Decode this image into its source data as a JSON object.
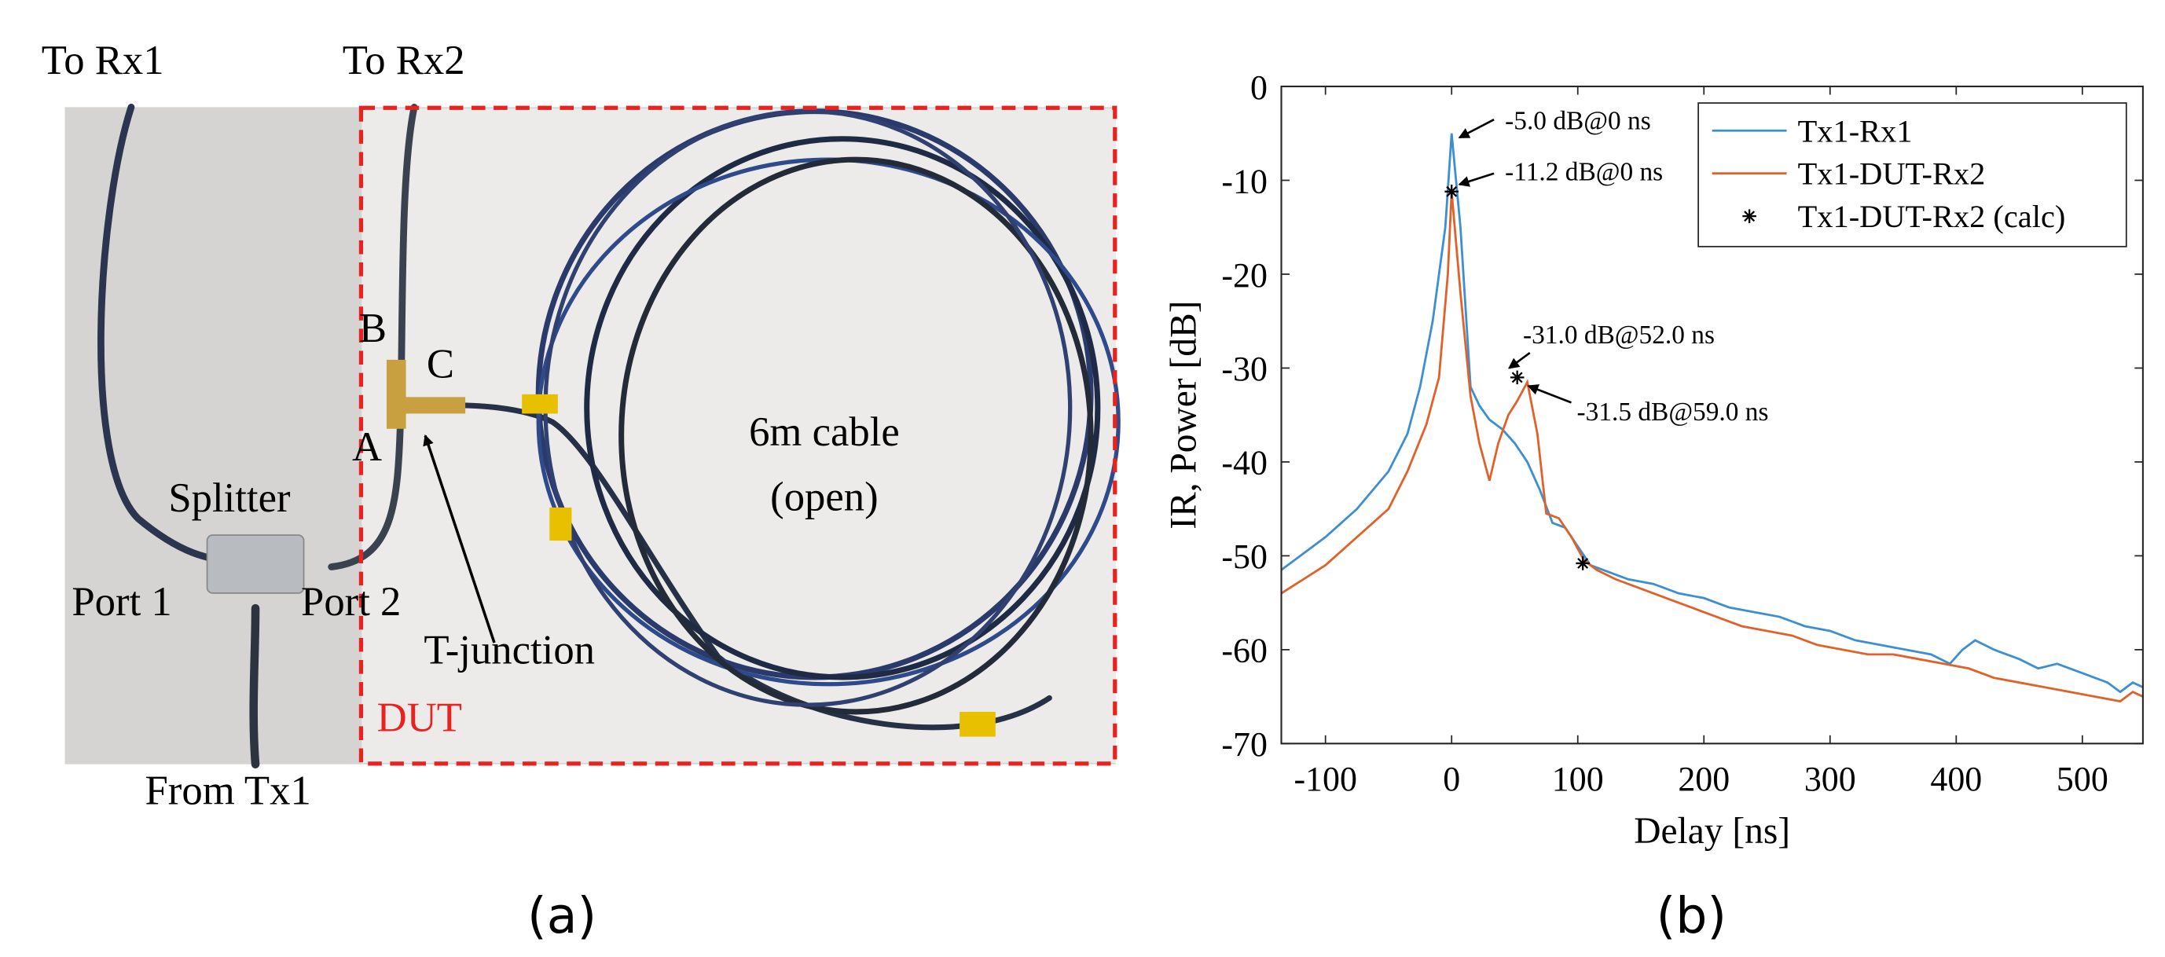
{
  "photo": {
    "labels": {
      "to_rx1": "To Rx1",
      "to_rx2": "To Rx2",
      "b": "B",
      "c": "C",
      "a": "A",
      "splitter": "Splitter",
      "port1": "Port 1",
      "port2": "Port 2",
      "t_junction": "T-junction",
      "cable_line1": "6m cable",
      "cable_line2": "(open)",
      "dut": "DUT",
      "from_tx1": "From Tx1"
    },
    "caption": "(a)"
  },
  "chart_data": {
    "type": "line",
    "caption": "(b)",
    "x_label": "Delay [ns]",
    "y_label": "IR, Power [dB]",
    "xlim": [
      -135,
      548
    ],
    "ylim": [
      -70,
      0
    ],
    "xticks": [
      -100,
      0,
      100,
      200,
      300,
      400,
      500
    ],
    "yticks": [
      0,
      -10,
      -20,
      -30,
      -40,
      -50,
      -60,
      -70
    ],
    "legend": "northeast",
    "series": [
      {
        "name": "Tx1-Rx1",
        "color": "#3d8fd0",
        "x": [
          -135,
          -100,
          -75,
          -50,
          -35,
          -25,
          -15,
          -5,
          0,
          7,
          15,
          22,
          30,
          40,
          50,
          60,
          70,
          80,
          90,
          100,
          110,
          120,
          140,
          160,
          180,
          200,
          220,
          240,
          260,
          280,
          300,
          320,
          340,
          360,
          380,
          395,
          405,
          415,
          430,
          450,
          465,
          480,
          500,
          520,
          530,
          540,
          548
        ],
        "values": [
          -51.5,
          -48,
          -45,
          -41,
          -37,
          -32,
          -25,
          -15,
          -5,
          -15,
          -32,
          -34,
          -35.5,
          -36.5,
          -38,
          -40,
          -43,
          -46.5,
          -47,
          -49,
          -51,
          -51.5,
          -52.5,
          -53,
          -54,
          -54.5,
          -55.5,
          -56,
          -56.5,
          -57.5,
          -58,
          -59,
          -59.5,
          -60,
          -60.5,
          -61.5,
          -60,
          -59,
          -60,
          -61,
          -62,
          -61.5,
          -62.5,
          -63.5,
          -64.5,
          -63.5,
          -64
        ]
      },
      {
        "name": "Tx1-DUT-Rx2",
        "color": "#e0622b",
        "x": [
          -135,
          -100,
          -75,
          -50,
          -35,
          -20,
          -10,
          -3,
          0,
          7,
          15,
          22,
          30,
          37,
          45,
          52,
          60,
          68,
          75,
          85,
          95,
          105,
          115,
          130,
          150,
          170,
          190,
          210,
          230,
          250,
          270,
          290,
          310,
          330,
          350,
          370,
          390,
          410,
          430,
          450,
          470,
          490,
          510,
          530,
          540,
          548
        ],
        "values": [
          -54,
          -51,
          -48,
          -45,
          -41,
          -36,
          -31,
          -20,
          -11.2,
          -22,
          -33,
          -38,
          -42,
          -38,
          -35,
          -33.5,
          -31.5,
          -37,
          -45.5,
          -46,
          -48,
          -50.5,
          -51.5,
          -52.5,
          -53.5,
          -54.5,
          -55.5,
          -56.5,
          -57.5,
          -58,
          -58.5,
          -59.5,
          -60,
          -60.5,
          -60.5,
          -61,
          -61.5,
          -62,
          -63,
          -63.5,
          -64,
          -64.5,
          -65,
          -65.5,
          -64.5,
          -65
        ]
      },
      {
        "name": "Tx1-DUT-Rx2 (calc)",
        "color": "#000000",
        "marker": "*",
        "x": [
          0,
          52,
          104
        ],
        "values": [
          -11.2,
          -31.0,
          -50.8
        ]
      }
    ],
    "annotations": [
      "-5.0 dB@0 ns",
      "-11.2 dB@0 ns",
      "-31.0 dB@52.0 ns",
      "-31.5 dB@59.0 ns"
    ]
  }
}
